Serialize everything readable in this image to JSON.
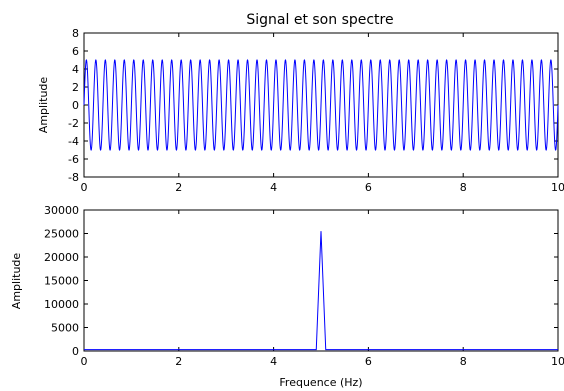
{
  "chart_data": [
    {
      "type": "line",
      "title": "Signal et son spectre",
      "xlabel": "",
      "ylabel": "Amplitude",
      "xlim": [
        0,
        10
      ],
      "ylim": [
        -8,
        8
      ],
      "xticks": [
        0,
        2,
        4,
        6,
        8,
        10
      ],
      "yticks": [
        -8,
        -6,
        -4,
        -2,
        0,
        2,
        4,
        6,
        8
      ],
      "grid": false,
      "series": [
        {
          "color": "#0000ff",
          "function": "sine",
          "amplitude": 5,
          "frequency_hz": 5,
          "x_start": 0,
          "x_end": 10
        }
      ]
    },
    {
      "type": "line",
      "title": "",
      "xlabel": "Frequence (Hz)",
      "ylabel": "Amplitude",
      "xlim": [
        0,
        10
      ],
      "ylim": [
        0,
        30000
      ],
      "xticks": [
        0,
        2,
        4,
        6,
        8,
        10
      ],
      "yticks": [
        0,
        5000,
        10000,
        15000,
        20000,
        25000,
        30000
      ],
      "grid": false,
      "series": [
        {
          "color": "#0000ff",
          "x": [
            0,
            4.8,
            4.9,
            5.0,
            5.1,
            5.2,
            10
          ],
          "y": [
            300,
            300,
            300,
            25500,
            300,
            300,
            300
          ]
        }
      ]
    }
  ]
}
